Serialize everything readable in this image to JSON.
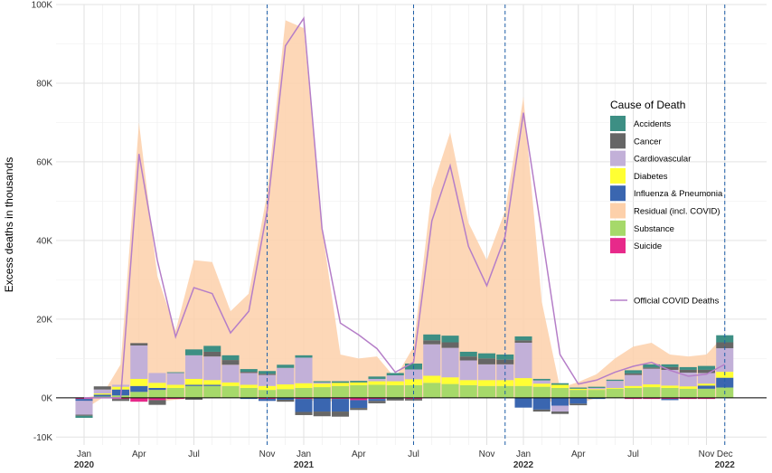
{
  "chart_data": {
    "type": "bar",
    "subtype": "stacked-bar-with-area-and-line",
    "title": "",
    "xlabel": "",
    "ylabel": "Excess deaths in thousands",
    "ylim": [
      -12000,
      100000
    ],
    "y_ticks": [
      {
        "value": 100000,
        "label": "100K"
      },
      {
        "value": 80000,
        "label": "80K"
      },
      {
        "value": 60000,
        "label": "60K"
      },
      {
        "value": 40000,
        "label": "40K"
      },
      {
        "value": 20000,
        "label": "20K"
      },
      {
        "value": 0,
        "label": "0K"
      },
      {
        "value": -10000,
        "label": "-10K"
      }
    ],
    "x_ticks": [
      {
        "index": 0,
        "label": "Jan",
        "year": "2020"
      },
      {
        "index": 3,
        "label": "Apr",
        "year": ""
      },
      {
        "index": 6,
        "label": "Jul",
        "year": ""
      },
      {
        "index": 10,
        "label": "Nov",
        "year": ""
      },
      {
        "index": 12,
        "label": "Jan",
        "year": "2021"
      },
      {
        "index": 15,
        "label": "Apr",
        "year": ""
      },
      {
        "index": 18,
        "label": "Jul",
        "year": ""
      },
      {
        "index": 22,
        "label": "Nov",
        "year": ""
      },
      {
        "index": 24,
        "label": "Jan",
        "year": "2022"
      },
      {
        "index": 27,
        "label": "Apr",
        "year": ""
      },
      {
        "index": 30,
        "label": "Jul",
        "year": ""
      },
      {
        "index": 34,
        "label": "Nov",
        "year": ""
      },
      {
        "index": 35,
        "label": "Dec",
        "year": "2022"
      }
    ],
    "vlines_at_index": [
      10,
      18,
      23,
      35
    ],
    "categories": [
      "Jan 2020",
      "Feb 2020",
      "Mar 2020",
      "Apr 2020",
      "May 2020",
      "Jun 2020",
      "Jul 2020",
      "Aug 2020",
      "Sep 2020",
      "Oct 2020",
      "Nov 2020",
      "Dec 2020",
      "Jan 2021",
      "Feb 2021",
      "Mar 2021",
      "Apr 2021",
      "May 2021",
      "Jun 2021",
      "Jul 2021",
      "Aug 2021",
      "Sep 2021",
      "Oct 2021",
      "Nov 2021",
      "Dec 2021",
      "Jan 2022",
      "Feb 2022",
      "Mar 2022",
      "Apr 2022",
      "May 2022",
      "Jun 2022",
      "Jul 2022",
      "Aug 2022",
      "Sep 2022",
      "Oct 2022",
      "Nov 2022",
      "Dec 2022"
    ],
    "series": [
      {
        "name": "Suicide",
        "color": "#e7298a",
        "values": [
          -300,
          0,
          -300,
          -1000,
          -600,
          -300,
          0,
          0,
          0,
          0,
          -300,
          0,
          -300,
          0,
          -300,
          -600,
          -300,
          0,
          -300,
          0,
          0,
          0,
          0,
          0,
          0,
          0,
          0,
          0,
          0,
          0,
          -300,
          -300,
          -300,
          -300,
          -300,
          0
        ]
      },
      {
        "name": "Substance",
        "color": "#a6d96a",
        "values": [
          0,
          300,
          600,
          1500,
          2000,
          2500,
          3000,
          3000,
          3000,
          2500,
          2000,
          2200,
          2500,
          2700,
          3000,
          3200,
          3300,
          3200,
          3200,
          3800,
          3500,
          3200,
          3000,
          3000,
          3000,
          2800,
          2500,
          2000,
          2000,
          2300,
          2500,
          2700,
          2500,
          2300,
          2300,
          2600
        ]
      },
      {
        "name": "Influenza & Pneumonia",
        "color": "#3a66b0",
        "values": [
          -500,
          500,
          1500,
          1500,
          500,
          0,
          300,
          300,
          0,
          -300,
          -500,
          -500,
          -3300,
          -3500,
          -3200,
          -2000,
          -500,
          0,
          0,
          0,
          0,
          0,
          0,
          0,
          -2500,
          -3000,
          -2000,
          -1500,
          -300,
          0,
          0,
          0,
          -300,
          0,
          800,
          2500
        ]
      },
      {
        "name": "Diabetes",
        "color": "#ffff33",
        "values": [
          0,
          300,
          700,
          1800,
          1300,
          800,
          1500,
          1200,
          900,
          800,
          1000,
          1200,
          1200,
          900,
          800,
          700,
          900,
          1000,
          1500,
          1800,
          1700,
          1300,
          1500,
          1500,
          2000,
          800,
          800,
          300,
          200,
          200,
          500,
          700,
          600,
          600,
          500,
          1500
        ]
      },
      {
        "name": "Cardiovascular",
        "color": "#c2b0d8",
        "values": [
          -3500,
          1000,
          500,
          8500,
          2500,
          3000,
          6000,
          6000,
          4500,
          3000,
          2800,
          4200,
          6500,
          300,
          0,
          0,
          600,
          1500,
          2500,
          8000,
          7500,
          5000,
          4000,
          4000,
          9000,
          800,
          -1500,
          0,
          300,
          1800,
          2800,
          4000,
          4000,
          3500,
          2700,
          6000
        ]
      },
      {
        "name": "Cancer",
        "color": "#666666",
        "values": [
          -300,
          800,
          -500,
          600,
          -1200,
          0,
          -500,
          1200,
          1200,
          300,
          300,
          -500,
          -800,
          -1200,
          -1300,
          -500,
          -600,
          -700,
          -400,
          1000,
          1400,
          1000,
          1500,
          1200,
          600,
          -500,
          -600,
          -400,
          0,
          0,
          400,
          300,
          700,
          700,
          800,
          1500
        ]
      },
      {
        "name": "Accidents",
        "color": "#3d8f84",
        "values": [
          -500,
          0,
          0,
          0,
          0,
          200,
          1500,
          1500,
          1200,
          700,
          700,
          800,
          600,
          300,
          400,
          400,
          600,
          600,
          1500,
          1500,
          1700,
          1200,
          1300,
          1300,
          1000,
          400,
          400,
          300,
          300,
          300,
          800,
          800,
          700,
          700,
          1000,
          1800
        ]
      }
    ],
    "residual_area": {
      "name": "Residual (incl. COVID)",
      "color": "#fdd0aa",
      "upper": [
        0,
        800,
        8500,
        70000,
        31000,
        17000,
        35000,
        34500,
        22000,
        26500,
        52000,
        96000,
        94000,
        43000,
        11000,
        10000,
        10500,
        5000,
        13000,
        53000,
        67500,
        44500,
        35000,
        47500,
        76500,
        24500,
        2500,
        4000,
        6000,
        10000,
        13000,
        14000,
        11000,
        10500,
        11000,
        16000
      ],
      "lower": [
        -3000,
        0,
        0,
        0,
        -1000,
        -500,
        0,
        0,
        0,
        0,
        0,
        0,
        -500,
        -1000,
        -800,
        0,
        0,
        0,
        0,
        0,
        0,
        0,
        0,
        0,
        0,
        0,
        -2000,
        -1500,
        0,
        0,
        0,
        0,
        0,
        0,
        0,
        0
      ]
    },
    "line": {
      "name": "Official COVID Deaths",
      "color": "#b57ec8",
      "values": [
        0,
        0,
        0,
        62000,
        35000,
        15500,
        28000,
        26500,
        16500,
        22000,
        47500,
        89500,
        96500,
        43000,
        19000,
        16000,
        12500,
        6500,
        9000,
        45000,
        59000,
        38500,
        28500,
        41000,
        72500,
        42000,
        11000,
        3500,
        4500,
        6500,
        8000,
        9000,
        7000,
        5500,
        6000,
        8500
      ]
    },
    "legend": {
      "title": "Cause of Death",
      "position": "right",
      "entries": [
        {
          "label": "Accidents",
          "color": "#3d8f84"
        },
        {
          "label": "Cancer",
          "color": "#666666"
        },
        {
          "label": "Cardiovascular",
          "color": "#c2b0d8"
        },
        {
          "label": "Diabetes",
          "color": "#ffff33"
        },
        {
          "label": "Influenza & Pneumonia",
          "color": "#3a66b0"
        },
        {
          "label": "Residual (incl. COVID)",
          "color": "#fdd0aa"
        },
        {
          "label": "Substance",
          "color": "#a6d96a"
        },
        {
          "label": "Suicide",
          "color": "#e7298a"
        }
      ],
      "line_entry": {
        "label": "Official COVID Deaths",
        "color": "#b57ec8"
      }
    }
  }
}
